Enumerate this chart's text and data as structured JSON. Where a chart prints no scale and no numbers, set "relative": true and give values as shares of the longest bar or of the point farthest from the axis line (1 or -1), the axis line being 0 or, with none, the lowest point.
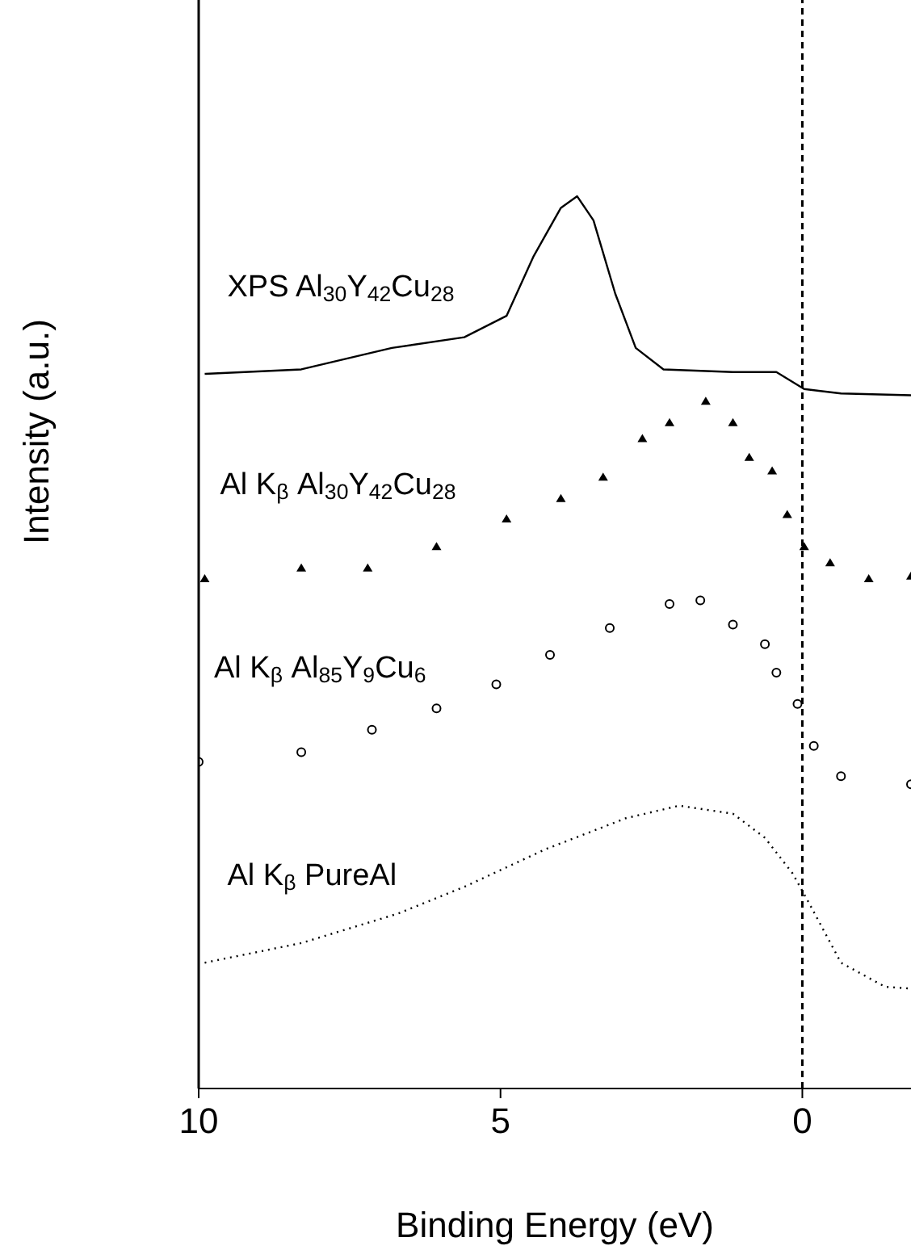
{
  "chart_data": {
    "type": "line",
    "relative": true,
    "xlabel": "Binding Energy (eV)",
    "ylabel": "Intensity (a.u.)",
    "xlim": [
      10,
      -1.8
    ],
    "xticks": [
      10,
      5,
      0
    ],
    "grid": false,
    "legend": false,
    "ref_lines": [
      {
        "axis": "x",
        "value": 0,
        "color": "#000000",
        "line_style": "dashed"
      }
    ],
    "series": [
      {
        "name": "XPS Al$_{30}$Y$_{42}$Cu$_{28}$",
        "line_style": "solid",
        "color": "#000000",
        "x": [
          9.9,
          8.3,
          6.8,
          5.6,
          4.9,
          4.45,
          4.0,
          3.73,
          3.46,
          3.1,
          2.76,
          2.3,
          1.15,
          0.43,
          -0.03,
          -0.64,
          -1.8
        ],
        "values": [
          0.801,
          0.806,
          0.83,
          0.842,
          0.866,
          0.933,
          0.987,
          1.0,
          0.973,
          0.891,
          0.83,
          0.806,
          0.803,
          0.803,
          0.784,
          0.779,
          0.777
        ]
      },
      {
        "name": "Al K$_{β}$ Al$_{30}$Y$_{42}$Cu$_{28}$",
        "type": "scatter",
        "marker": "triangle",
        "color": "#000000",
        "x": [
          9.9,
          8.3,
          7.2,
          6.06,
          4.9,
          4.0,
          3.3,
          2.65,
          2.2,
          1.6,
          1.15,
          0.88,
          0.5,
          0.25,
          -0.03,
          -0.46,
          -1.1,
          -1.8
        ],
        "values": [
          0.571,
          0.583,
          0.583,
          0.607,
          0.638,
          0.661,
          0.685,
          0.728,
          0.746,
          0.77,
          0.746,
          0.707,
          0.692,
          0.643,
          0.607,
          0.589,
          0.571,
          0.574
        ]
      },
      {
        "name": "Al K$_{β}$ Al$_{85}$Y$_{9}$Cu$_{6}$",
        "type": "scatter",
        "marker": "circle",
        "color": "#000000",
        "x": [
          10,
          8.3,
          7.13,
          6.06,
          5.07,
          4.18,
          3.19,
          2.2,
          1.69,
          1.15,
          0.62,
          0.43,
          0.08,
          -0.19,
          -0.64,
          -1.8
        ],
        "values": [
          0.366,
          0.377,
          0.402,
          0.426,
          0.453,
          0.486,
          0.516,
          0.543,
          0.547,
          0.52,
          0.498,
          0.466,
          0.431,
          0.384,
          0.35,
          0.341
        ]
      },
      {
        "name": "Al K$_{β}$ PureAl",
        "line_style": "dotted",
        "color": "#000000",
        "x": [
          9.9,
          8.3,
          6.7,
          5.6,
          4.26,
          2.92,
          2.04,
          1.15,
          0.62,
          0.16,
          -0.11,
          -0.64,
          -1.37,
          -1.8
        ],
        "values": [
          0.141,
          0.163,
          0.196,
          0.226,
          0.268,
          0.303,
          0.317,
          0.308,
          0.281,
          0.241,
          0.208,
          0.141,
          0.114,
          0.112
        ]
      }
    ]
  }
}
